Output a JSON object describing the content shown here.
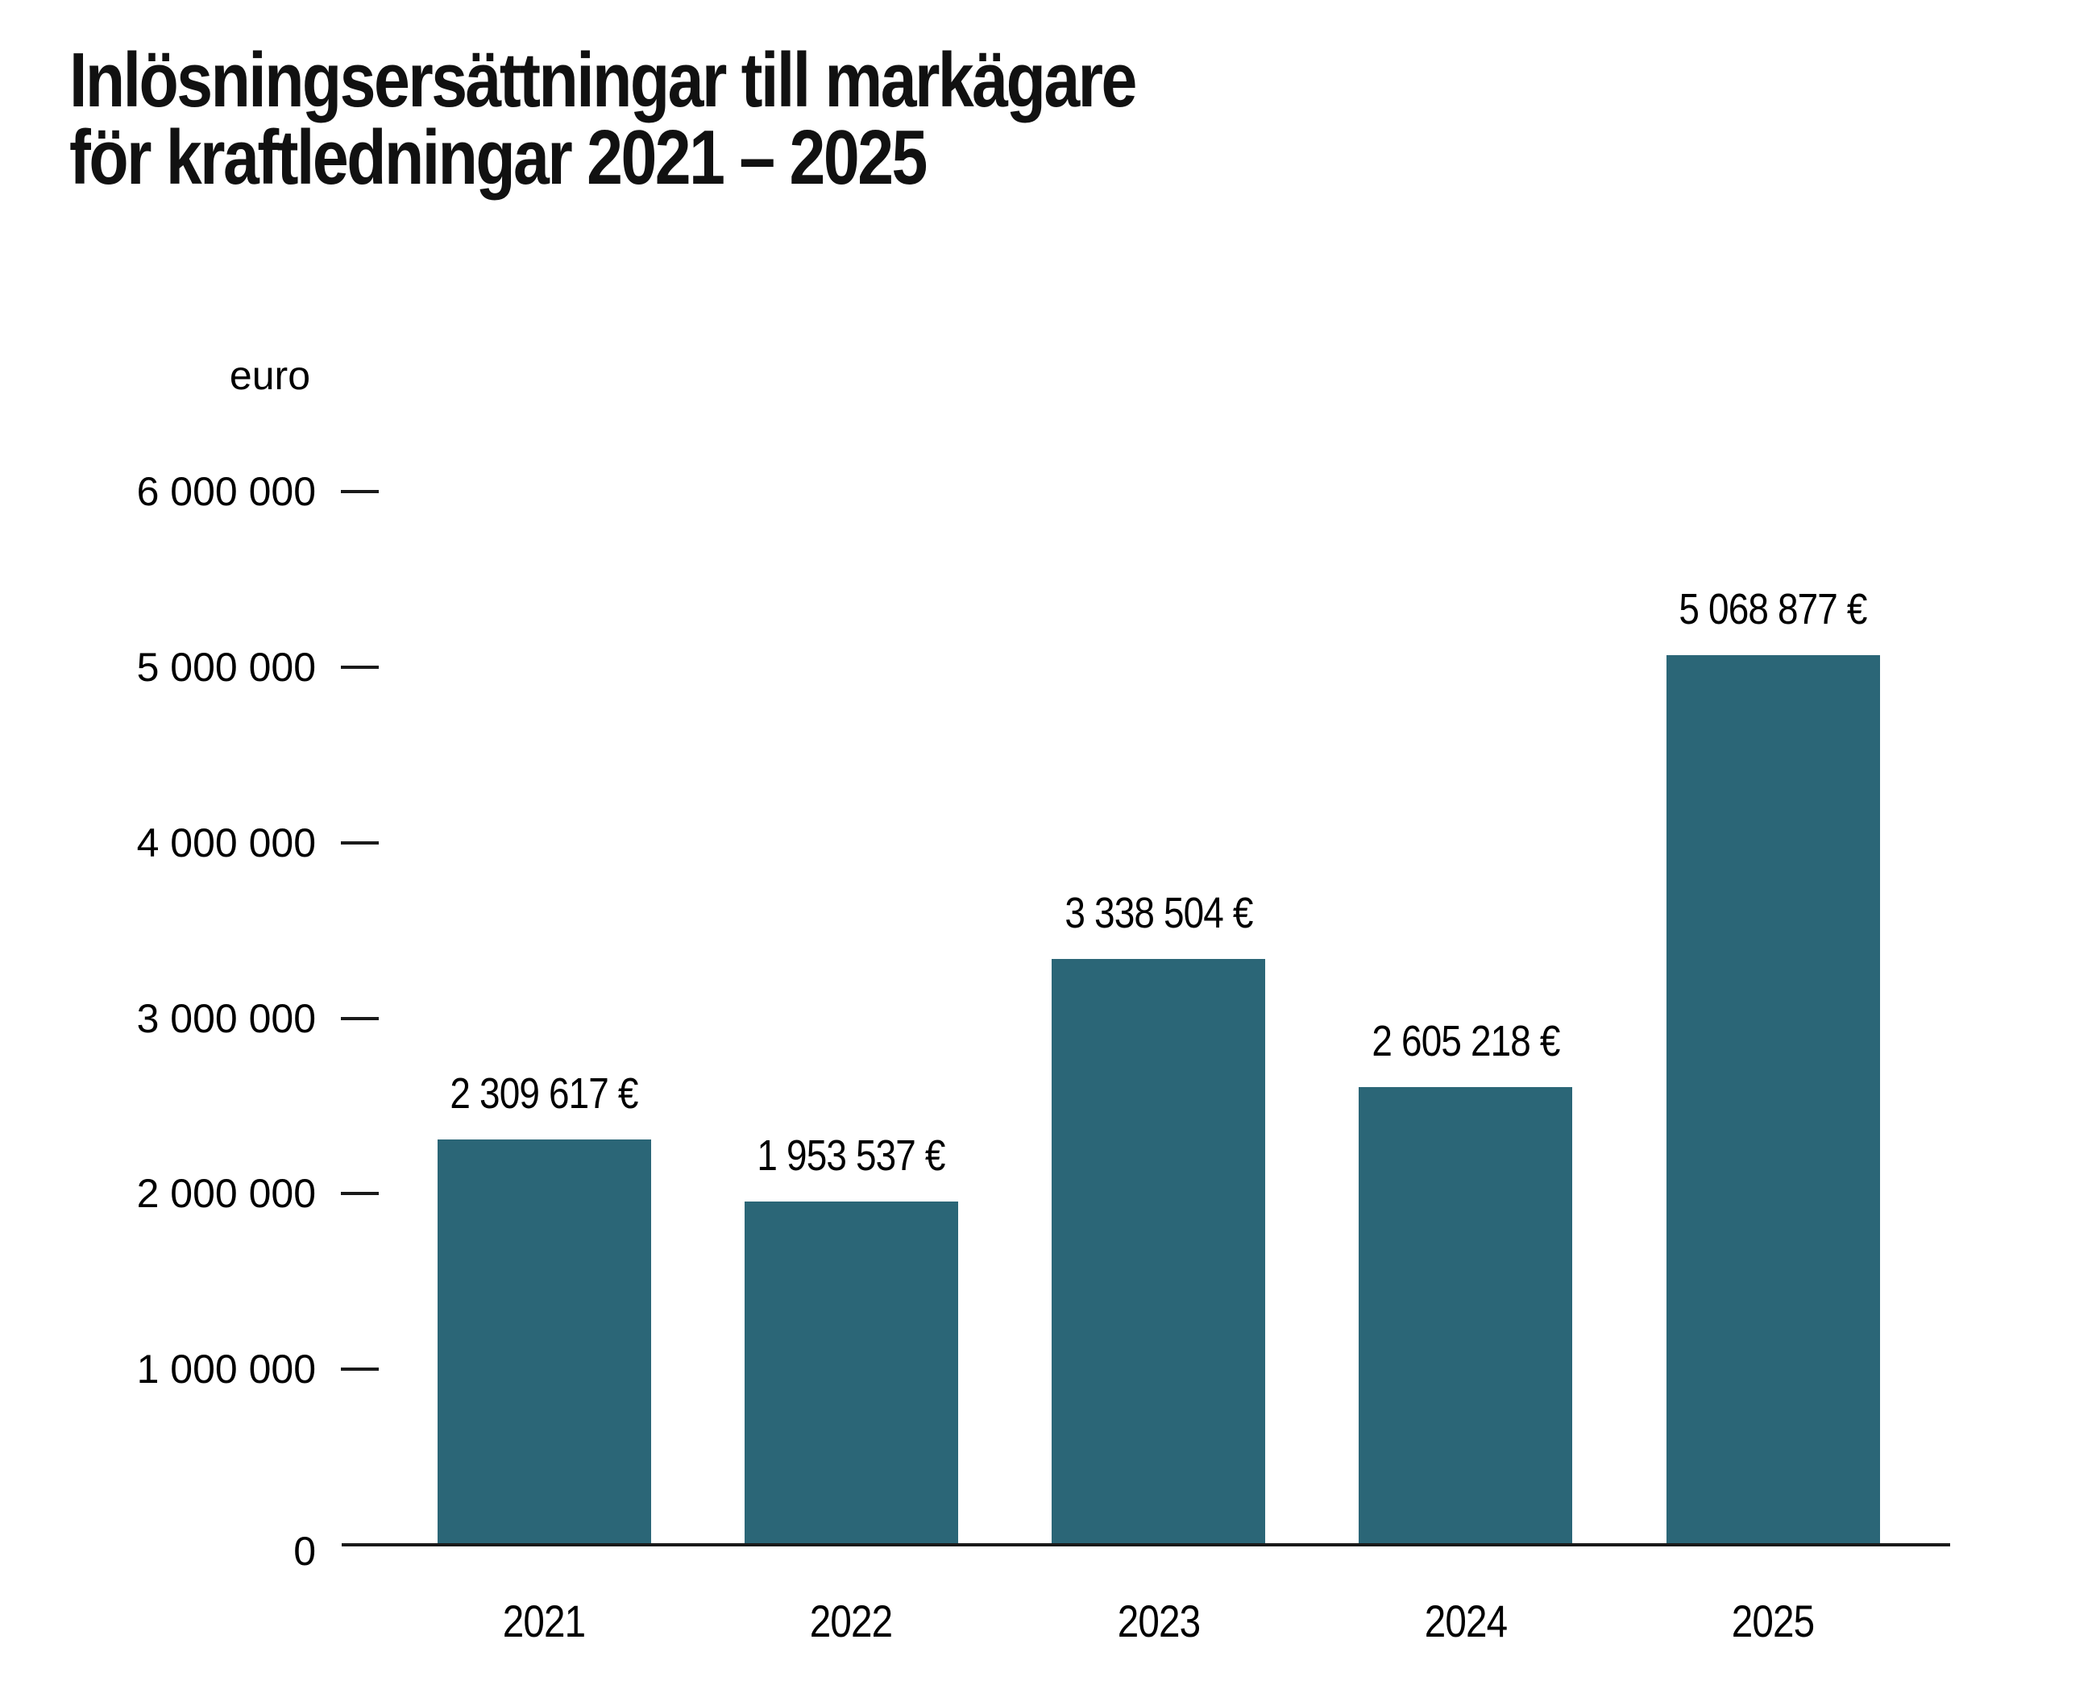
{
  "title": {
    "line1": "Inlösningsersättningar till markägare",
    "line2": "för kraftledningar 2021 – 2025"
  },
  "chart_data": {
    "type": "bar",
    "title": "Inlösningsersättningar till markägare för kraftledningar 2021 – 2025",
    "unit_label": "euro",
    "categories": [
      "2021",
      "2022",
      "2023",
      "2024",
      "2025"
    ],
    "values": [
      2309617,
      1953537,
      3338504,
      2605218,
      5068877
    ],
    "value_labels": [
      "2 309 617 €",
      "1 953 537 €",
      "3 338 504 €",
      "2 605 218 €",
      "5 068 877 €"
    ],
    "xlabel": "",
    "ylabel": "euro",
    "ylim": [
      0,
      6000000
    ],
    "ytick_interval": 1000000,
    "ytick_labels": [
      "6 000 000",
      "5 000 000",
      "4 000 000",
      "3 000 000",
      "2 000 000",
      "1 000 000",
      "0"
    ],
    "grid": false,
    "legend": null,
    "colors": {
      "bar": "#2B6677",
      "axis": "#1A1A1A",
      "text": "#000000",
      "background": "#FFFFFF"
    }
  }
}
